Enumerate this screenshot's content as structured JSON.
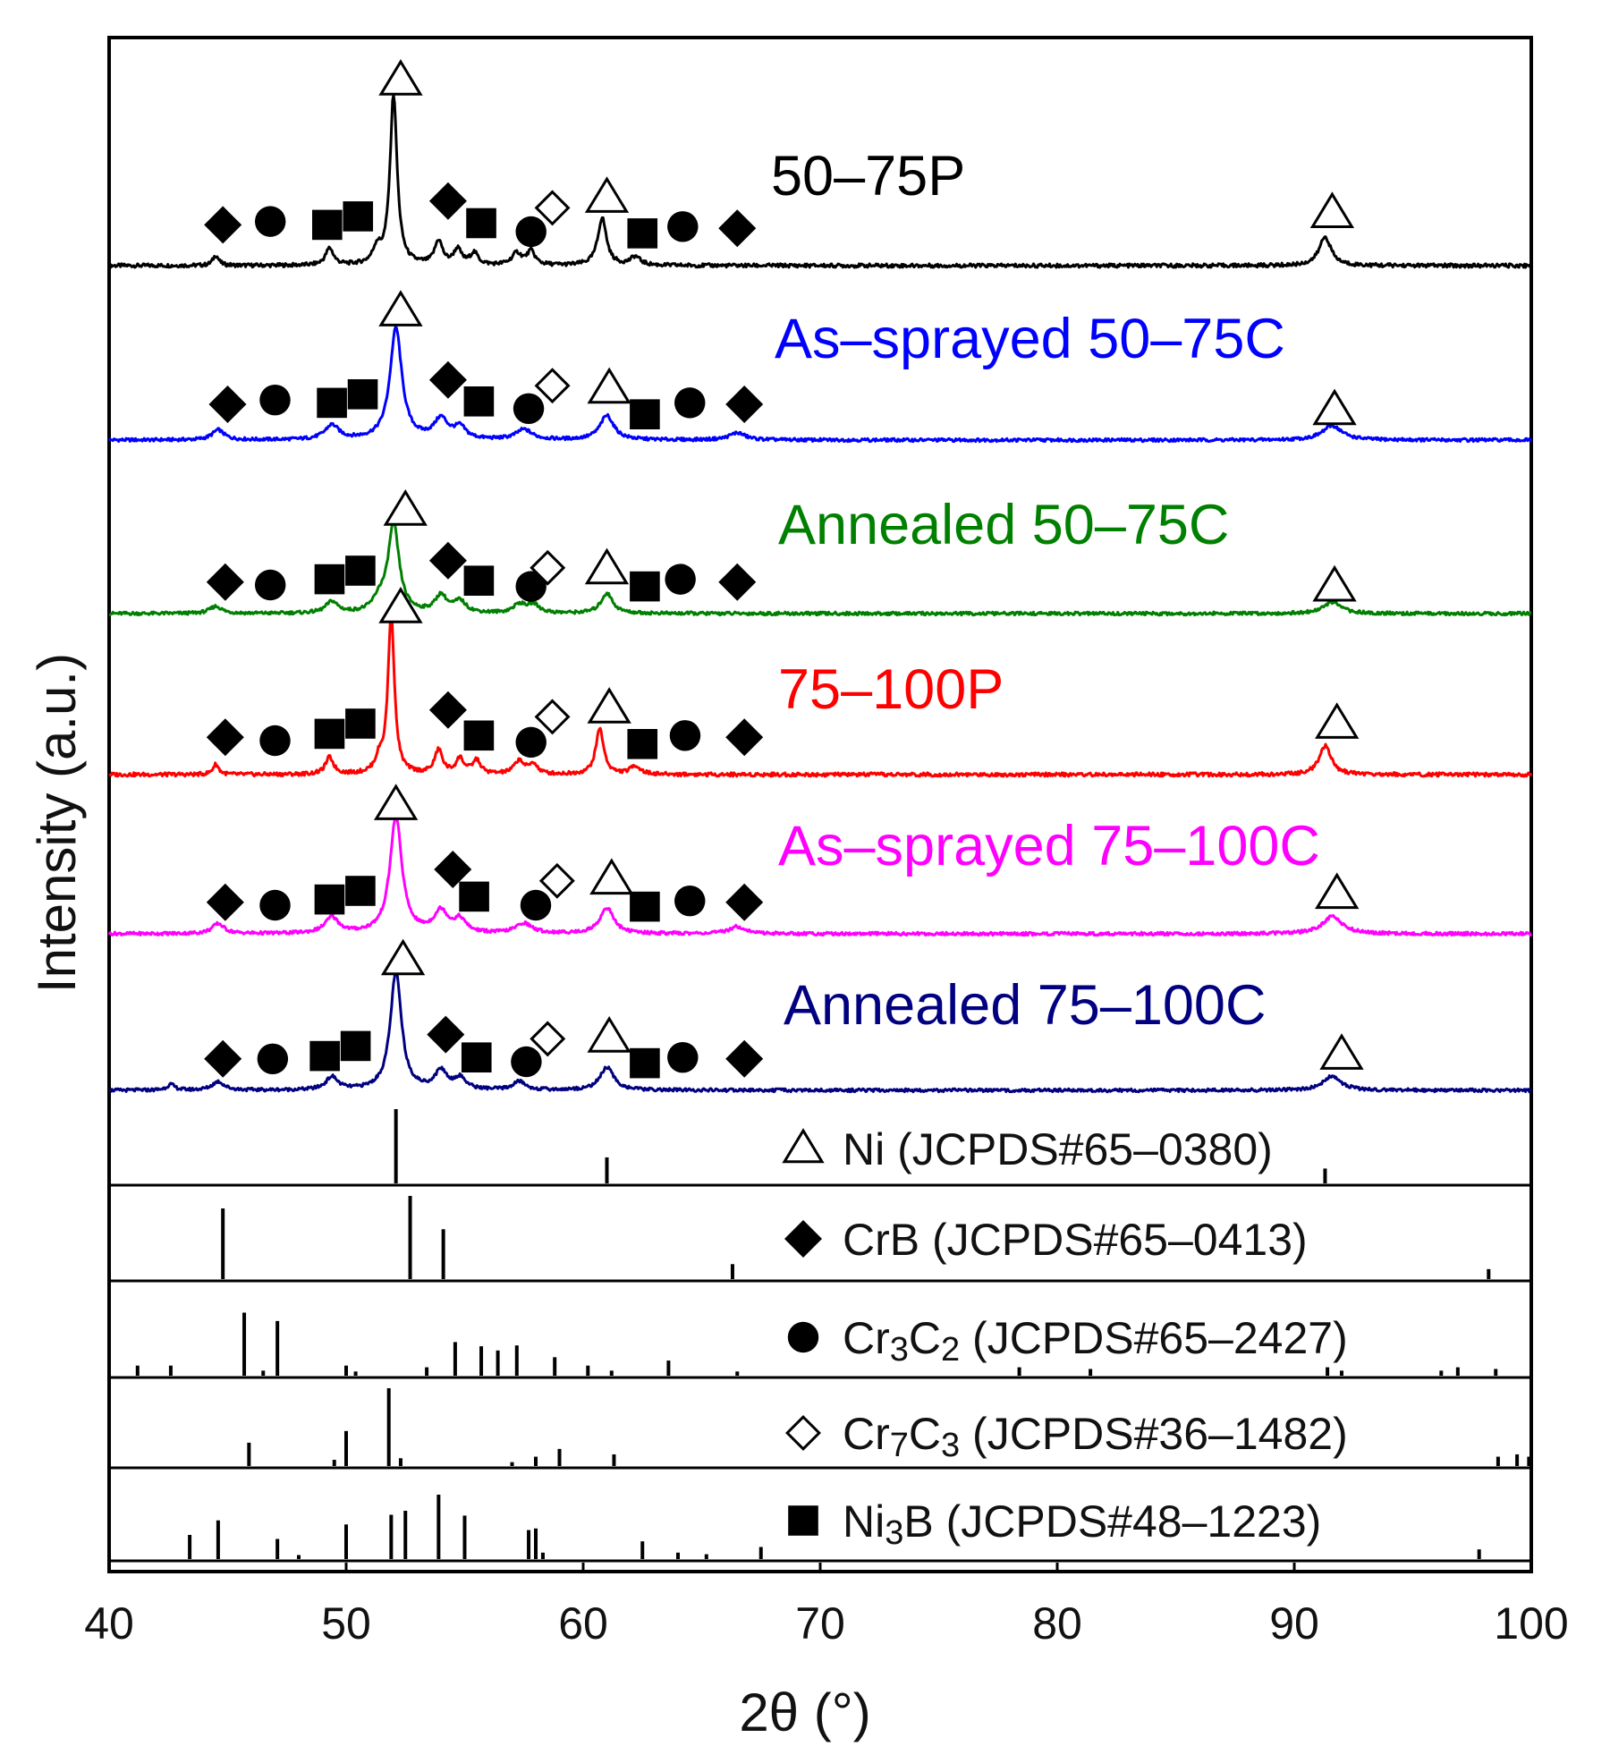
{
  "chart_data": {
    "type": "line",
    "title": "",
    "xlabel": "2θ (°)",
    "ylabel": "Intensity (a.u.)",
    "xlim": [
      40,
      100
    ],
    "xticks": [
      40,
      50,
      60,
      70,
      80,
      90,
      100
    ],
    "grid": false,
    "series": [
      {
        "name": "50–75P",
        "color": "#000000",
        "baseline": 0.0,
        "peaks": [
          [
            44.5,
            0.06,
            0.15
          ],
          [
            49.3,
            0.1,
            0.2
          ],
          [
            51.3,
            0.09,
            0.2
          ],
          [
            52.0,
            1.0,
            0.18
          ],
          [
            53.9,
            0.14,
            0.2
          ],
          [
            54.7,
            0.09,
            0.2
          ],
          [
            55.4,
            0.07,
            0.2
          ],
          [
            57.2,
            0.07,
            0.25
          ],
          [
            57.8,
            0.08,
            0.2
          ],
          [
            60.8,
            0.28,
            0.22
          ],
          [
            62.2,
            0.05,
            0.25
          ],
          [
            91.3,
            0.17,
            0.3
          ]
        ],
        "markers": [
          [
            "diamond",
            44.8,
            0.24
          ],
          [
            "circle",
            46.8,
            0.26
          ],
          [
            "square",
            49.2,
            0.24
          ],
          [
            "square",
            50.5,
            0.29
          ],
          [
            "triangle",
            52.3,
            1.09
          ],
          [
            "diamond",
            54.3,
            0.38
          ],
          [
            "square",
            55.7,
            0.25
          ],
          [
            "circle",
            57.8,
            0.2
          ],
          [
            "diamond-open",
            58.7,
            0.34
          ],
          [
            "triangle",
            61.0,
            0.4
          ],
          [
            "square",
            62.5,
            0.19
          ],
          [
            "circle",
            64.2,
            0.23
          ],
          [
            "diamond",
            66.5,
            0.22
          ],
          [
            "triangle",
            91.6,
            0.31
          ]
        ]
      },
      {
        "name": "As–sprayed 50–75C",
        "color": "#0000ff",
        "baseline": 0.0,
        "peaks": [
          [
            44.6,
            0.07,
            0.3
          ],
          [
            49.4,
            0.1,
            0.35
          ],
          [
            52.1,
            0.78,
            0.3
          ],
          [
            54.0,
            0.14,
            0.35
          ],
          [
            54.8,
            0.08,
            0.3
          ],
          [
            57.5,
            0.07,
            0.4
          ],
          [
            61.0,
            0.17,
            0.35
          ],
          [
            66.5,
            0.05,
            0.4
          ],
          [
            91.6,
            0.1,
            0.5
          ]
        ],
        "markers": [
          [
            "diamond",
            45.0,
            0.25
          ],
          [
            "circle",
            47.0,
            0.28
          ],
          [
            "square",
            49.4,
            0.26
          ],
          [
            "square",
            50.7,
            0.32
          ],
          [
            "triangle",
            52.3,
            0.9
          ],
          [
            "diamond",
            54.3,
            0.42
          ],
          [
            "square",
            55.6,
            0.27
          ],
          [
            "circle",
            57.7,
            0.22
          ],
          [
            "diamond-open",
            58.7,
            0.38
          ],
          [
            "triangle",
            61.1,
            0.36
          ],
          [
            "square",
            62.6,
            0.18
          ],
          [
            "circle",
            64.5,
            0.26
          ],
          [
            "diamond",
            66.8,
            0.25
          ],
          [
            "triangle",
            91.7,
            0.21
          ]
        ]
      },
      {
        "name": "Annealed 50–75C",
        "color": "#008000",
        "baseline": 0.0,
        "peaks": [
          [
            44.5,
            0.05,
            0.3
          ],
          [
            49.4,
            0.08,
            0.3
          ],
          [
            51.4,
            0.08,
            0.3
          ],
          [
            52.0,
            0.62,
            0.28
          ],
          [
            54.0,
            0.12,
            0.3
          ],
          [
            54.8,
            0.08,
            0.3
          ],
          [
            57.3,
            0.06,
            0.3
          ],
          [
            57.9,
            0.06,
            0.3
          ],
          [
            61.0,
            0.14,
            0.3
          ],
          [
            91.6,
            0.08,
            0.45
          ]
        ],
        "markers": [
          [
            "diamond",
            44.9,
            0.22
          ],
          [
            "circle",
            46.8,
            0.2
          ],
          [
            "square",
            49.3,
            0.24
          ],
          [
            "square",
            50.6,
            0.3
          ],
          [
            "triangle",
            52.5,
            0.72
          ],
          [
            "diamond",
            54.3,
            0.37
          ],
          [
            "square",
            55.6,
            0.23
          ],
          [
            "circle",
            57.8,
            0.19
          ],
          [
            "diamond-open",
            58.5,
            0.32
          ],
          [
            "triangle",
            61.0,
            0.31
          ],
          [
            "square",
            62.6,
            0.19
          ],
          [
            "circle",
            64.1,
            0.24
          ],
          [
            "diamond",
            66.5,
            0.22
          ],
          [
            "triangle",
            91.7,
            0.19
          ]
        ]
      },
      {
        "name": "75–100P",
        "color": "#ff0000",
        "baseline": 0.0,
        "peaks": [
          [
            44.5,
            0.06,
            0.15
          ],
          [
            49.3,
            0.1,
            0.2
          ],
          [
            51.4,
            0.08,
            0.2
          ],
          [
            51.9,
            0.95,
            0.16
          ],
          [
            53.9,
            0.14,
            0.2
          ],
          [
            54.8,
            0.09,
            0.2
          ],
          [
            55.5,
            0.08,
            0.2
          ],
          [
            57.3,
            0.08,
            0.25
          ],
          [
            57.9,
            0.06,
            0.2
          ],
          [
            60.7,
            0.27,
            0.2
          ],
          [
            62.2,
            0.05,
            0.25
          ],
          [
            91.3,
            0.17,
            0.3
          ]
        ],
        "markers": [
          [
            "diamond",
            44.9,
            0.22
          ],
          [
            "circle",
            47.0,
            0.2
          ],
          [
            "square",
            49.3,
            0.24
          ],
          [
            "square",
            50.6,
            0.3
          ],
          [
            "triangle",
            52.3,
            0.98
          ],
          [
            "diamond",
            54.3,
            0.38
          ],
          [
            "square",
            55.6,
            0.23
          ],
          [
            "circle",
            57.8,
            0.19
          ],
          [
            "diamond-open",
            58.7,
            0.34
          ],
          [
            "triangle",
            61.1,
            0.39
          ],
          [
            "square",
            62.5,
            0.18
          ],
          [
            "circle",
            64.3,
            0.23
          ],
          [
            "diamond",
            66.8,
            0.22
          ],
          [
            "triangle",
            91.8,
            0.3
          ]
        ]
      },
      {
        "name": "As–sprayed 75–100C",
        "color": "#ff00ff",
        "baseline": 0.0,
        "peaks": [
          [
            44.6,
            0.07,
            0.3
          ],
          [
            49.4,
            0.11,
            0.35
          ],
          [
            52.1,
            0.82,
            0.3
          ],
          [
            54.0,
            0.15,
            0.35
          ],
          [
            54.8,
            0.09,
            0.3
          ],
          [
            57.5,
            0.07,
            0.4
          ],
          [
            61.0,
            0.18,
            0.35
          ],
          [
            66.5,
            0.05,
            0.4
          ],
          [
            91.6,
            0.12,
            0.5
          ]
        ],
        "markers": [
          [
            "diamond",
            44.9,
            0.22
          ],
          [
            "circle",
            47.0,
            0.2
          ],
          [
            "square",
            49.3,
            0.24
          ],
          [
            "square",
            50.6,
            0.3
          ],
          [
            "triangle",
            52.1,
            0.9
          ],
          [
            "diamond",
            54.5,
            0.45
          ],
          [
            "square",
            55.4,
            0.26
          ],
          [
            "circle",
            58.0,
            0.2
          ],
          [
            "diamond-open",
            58.9,
            0.37
          ],
          [
            "triangle",
            61.2,
            0.38
          ],
          [
            "square",
            62.6,
            0.19
          ],
          [
            "circle",
            64.5,
            0.23
          ],
          [
            "diamond",
            66.8,
            0.22
          ],
          [
            "triangle",
            91.8,
            0.28
          ]
        ]
      },
      {
        "name": "Annealed 75–100C",
        "color": "#000080",
        "baseline": 0.0,
        "peaks": [
          [
            42.6,
            0.04,
            0.2
          ],
          [
            44.6,
            0.06,
            0.3
          ],
          [
            49.4,
            0.09,
            0.3
          ],
          [
            52.1,
            0.83,
            0.28
          ],
          [
            54.0,
            0.13,
            0.3
          ],
          [
            54.8,
            0.08,
            0.3
          ],
          [
            57.3,
            0.06,
            0.3
          ],
          [
            61.0,
            0.16,
            0.35
          ],
          [
            91.6,
            0.1,
            0.45
          ]
        ],
        "markers": [
          [
            "diamond",
            44.8,
            0.22
          ],
          [
            "circle",
            46.9,
            0.22
          ],
          [
            "square",
            49.1,
            0.24
          ],
          [
            "square",
            50.4,
            0.31
          ],
          [
            "triangle",
            52.4,
            0.91
          ],
          [
            "diamond",
            54.2,
            0.39
          ],
          [
            "square",
            55.5,
            0.23
          ],
          [
            "circle",
            57.6,
            0.2
          ],
          [
            "diamond-open",
            58.5,
            0.36
          ],
          [
            "triangle",
            61.1,
            0.37
          ],
          [
            "square",
            62.6,
            0.19
          ],
          [
            "circle",
            64.2,
            0.23
          ],
          [
            "diamond",
            66.8,
            0.22
          ],
          [
            "triangle",
            92.0,
            0.25
          ]
        ]
      }
    ],
    "references": [
      {
        "label": "Ni (JCPDS#65–0380)",
        "marker": "triangle",
        "lines": [
          [
            52.1,
            1.0
          ],
          [
            61.0,
            0.35
          ],
          [
            91.3,
            0.2
          ]
        ]
      },
      {
        "label": "CrB (JCPDS#65–0413)",
        "marker": "diamond",
        "lines": [
          [
            44.8,
            0.85
          ],
          [
            52.7,
            1.0
          ],
          [
            54.1,
            0.6
          ],
          [
            66.3,
            0.18
          ],
          [
            98.2,
            0.12
          ]
        ]
      },
      {
        "label": "Cr3C2 (JCPDS#65–2427)",
        "marker": "circle",
        "lines": [
          [
            41.2,
            0.12
          ],
          [
            42.6,
            0.12
          ],
          [
            45.7,
            0.75
          ],
          [
            46.5,
            0.06
          ],
          [
            47.1,
            0.65
          ],
          [
            50.0,
            0.12
          ],
          [
            50.4,
            0.05
          ],
          [
            53.4,
            0.1
          ],
          [
            54.6,
            0.4
          ],
          [
            55.7,
            0.35
          ],
          [
            56.4,
            0.3
          ],
          [
            57.2,
            0.36
          ],
          [
            58.8,
            0.22
          ],
          [
            60.2,
            0.12
          ],
          [
            61.2,
            0.06
          ],
          [
            63.6,
            0.18
          ],
          [
            66.5,
            0.05
          ],
          [
            78.4,
            0.1
          ],
          [
            81.4,
            0.08
          ],
          [
            91.4,
            0.1
          ],
          [
            92.0,
            0.06
          ],
          [
            96.2,
            0.06
          ],
          [
            96.9,
            0.1
          ],
          [
            98.5,
            0.08
          ]
        ]
      },
      {
        "label": "Cr7C3 (JCPDS#36–1482)",
        "marker": "diamond-open",
        "lines": [
          [
            45.9,
            0.3
          ],
          [
            49.5,
            0.08
          ],
          [
            50.0,
            0.45
          ],
          [
            51.8,
            1.0
          ],
          [
            52.3,
            0.1
          ],
          [
            57.0,
            0.05
          ],
          [
            58.0,
            0.12
          ],
          [
            59.0,
            0.22
          ],
          [
            61.3,
            0.15
          ],
          [
            98.6,
            0.12
          ],
          [
            99.4,
            0.15
          ],
          [
            99.9,
            0.12
          ]
        ]
      },
      {
        "label": "Ni3B (JCPDS#48–1223)",
        "marker": "square",
        "lines": [
          [
            43.4,
            0.3
          ],
          [
            44.6,
            0.48
          ],
          [
            47.1,
            0.25
          ],
          [
            48.0,
            0.05
          ],
          [
            50.0,
            0.43
          ],
          [
            51.9,
            0.55
          ],
          [
            52.5,
            0.6
          ],
          [
            53.9,
            0.8
          ],
          [
            55.0,
            0.54
          ],
          [
            57.7,
            0.36
          ],
          [
            58.0,
            0.38
          ],
          [
            58.3,
            0.08
          ],
          [
            62.5,
            0.22
          ],
          [
            64.0,
            0.08
          ],
          [
            65.2,
            0.06
          ],
          [
            67.5,
            0.15
          ],
          [
            97.8,
            0.12
          ]
        ]
      }
    ],
    "reference_labels": [
      {
        "base": "Ni (JCPDS#65–0380)"
      },
      {
        "base": "CrB (JCPDS#65–0413)"
      },
      {
        "base": "Cr3C2 (JCPDS#65–2427)",
        "p1": "Cr",
        "s1": "3",
        "p2": "C",
        "s2": "2",
        "rest": " (JCPDS#65–2427)"
      },
      {
        "base": "Cr7C3 (JCPDS#36–1482)",
        "p1": "Cr",
        "s1": "7",
        "p2": "C",
        "s2": "3",
        "rest": " (JCPDS#36–1482)"
      },
      {
        "base": "Ni3B (JCPDS#48–1223)",
        "p1": "Ni",
        "s1": "3",
        "p2": "B",
        "s2": "",
        "rest": " (JCPDS#48–1223)"
      }
    ]
  }
}
